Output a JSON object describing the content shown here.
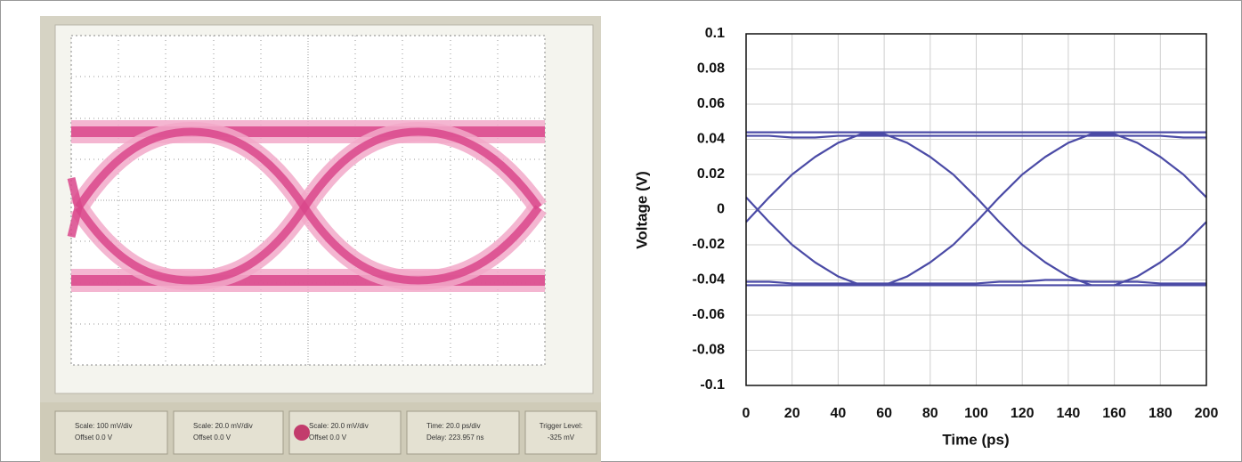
{
  "chart_data": {
    "type": "line",
    "xlabel": "Time (ps)",
    "ylabel": "Voltage (V)",
    "xlim": [
      0,
      200
    ],
    "xticks": [
      0,
      20,
      40,
      60,
      80,
      100,
      120,
      140,
      160,
      180,
      200
    ],
    "ylim": [
      -0.1,
      0.1
    ],
    "yticks": [
      -0.1,
      -0.08,
      -0.06,
      -0.04,
      -0.02,
      0,
      0.02,
      0.04,
      0.06,
      0.08,
      0.1
    ],
    "grid": true,
    "x": [
      0,
      10,
      20,
      30,
      40,
      50,
      60,
      70,
      80,
      90,
      100,
      110,
      120,
      130,
      140,
      150,
      160,
      170,
      180,
      190,
      200
    ],
    "series": [
      {
        "color": "#4b4ba6",
        "values": [
          -0.007,
          0.007,
          0.02,
          0.03,
          0.038,
          0.043,
          0.043,
          0.038,
          0.03,
          0.02,
          0.007,
          -0.007,
          -0.02,
          -0.03,
          -0.038,
          -0.043,
          -0.043,
          -0.038,
          -0.03,
          -0.02,
          -0.007
        ]
      },
      {
        "color": "#4b4ba6",
        "values": [
          0.007,
          -0.007,
          -0.02,
          -0.03,
          -0.038,
          -0.043,
          -0.043,
          -0.038,
          -0.03,
          -0.02,
          -0.007,
          0.007,
          0.02,
          0.03,
          0.038,
          0.043,
          0.043,
          0.038,
          0.03,
          0.02,
          0.007
        ]
      },
      {
        "color": "#4b4ba6",
        "values": [
          0.044,
          0.044,
          0.044,
          0.044,
          0.044,
          0.044,
          0.044,
          0.044,
          0.044,
          0.044,
          0.044,
          0.044,
          0.044,
          0.044,
          0.044,
          0.044,
          0.044,
          0.044,
          0.044,
          0.044,
          0.044
        ]
      },
      {
        "color": "#4b4ba6",
        "values": [
          0.042,
          0.042,
          0.041,
          0.041,
          0.042,
          0.042,
          0.042,
          0.042,
          0.042,
          0.042,
          0.042,
          0.042,
          0.042,
          0.042,
          0.042,
          0.042,
          0.042,
          0.042,
          0.042,
          0.041,
          0.041
        ]
      },
      {
        "color": "#4b4ba6",
        "values": [
          -0.043,
          -0.043,
          -0.043,
          -0.043,
          -0.043,
          -0.043,
          -0.043,
          -0.043,
          -0.043,
          -0.043,
          -0.043,
          -0.043,
          -0.043,
          -0.043,
          -0.043,
          -0.043,
          -0.043,
          -0.043,
          -0.043,
          -0.043,
          -0.043
        ]
      },
      {
        "color": "#4b4ba6",
        "values": [
          -0.041,
          -0.041,
          -0.042,
          -0.042,
          -0.042,
          -0.042,
          -0.042,
          -0.042,
          -0.042,
          -0.042,
          -0.042,
          -0.041,
          -0.041,
          -0.04,
          -0.04,
          -0.041,
          -0.041,
          -0.041,
          -0.042,
          -0.042,
          -0.042
        ]
      }
    ]
  },
  "scope_status": [
    {
      "line1": "Scale: 100 mV/div",
      "line2": "Offset 0.0 V"
    },
    {
      "line1": "Scale: 20.0 mV/div",
      "line2": "Offset 0.0 V"
    },
    {
      "line1": "Scale: 20.0 mV/div",
      "line2": "Offset 0.0 V"
    },
    {
      "line1": "Time: 20.0 ps/div",
      "line2": "Delay: 223.957 ns"
    },
    {
      "line1": "Trigger Level:",
      "line2": "-325 mV"
    }
  ]
}
